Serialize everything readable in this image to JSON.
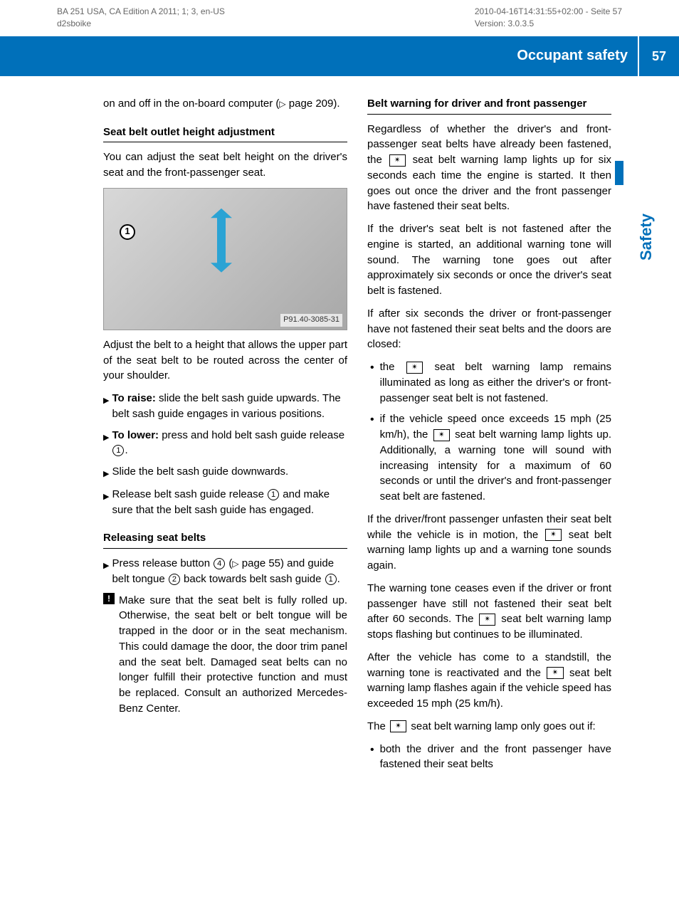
{
  "meta": {
    "doc_id_1": "BA 251 USA, CA Edition A 2011; 1; 3, en-US",
    "doc_id_2": "d2sboike",
    "timestamp": "2010-04-16T14:31:55+02:00 - Seite 57",
    "version": "Version: 3.0.3.5"
  },
  "header": {
    "title": "Occupant safety",
    "page": "57"
  },
  "side_tab": "Safety",
  "left": {
    "intro_1": "on and off in the on-board computer (",
    "intro_2": " page 209).",
    "h1": "Seat belt outlet height adjustment",
    "p1": "You can adjust the seat belt height on the driver's seat and the front-passenger seat.",
    "fig_label": "P91.40-3085-31",
    "p2": "Adjust the belt to a height that allows the upper part of the seat belt to be routed across the center of your shoulder.",
    "step1_a": "To raise:",
    "step1_b": " slide the belt sash guide upwards. The belt sash guide engages in various positions.",
    "step2_a": "To lower:",
    "step2_b": " press and hold belt sash guide release ",
    "step2_c": ".",
    "step3": "Slide the belt sash guide downwards.",
    "step4_a": "Release belt sash guide release ",
    "step4_b": " and make sure that the belt sash guide has engaged.",
    "h2": "Releasing seat belts",
    "rel_a": "Press release button ",
    "rel_b": " (",
    "rel_c": " page 55) and guide belt tongue ",
    "rel_d": " back towards belt sash guide ",
    "rel_e": ".",
    "note": "Make sure that the seat belt is fully rolled up. Otherwise, the seat belt or belt tongue will be trapped in the door or in the seat mechanism. This could damage the door, the door trim panel and the seat belt. Damaged seat belts can no longer fulfill their protective function and must be replaced. Consult an authorized Mercedes-Benz Center."
  },
  "right": {
    "h1": "Belt warning for driver and front passenger",
    "p1_a": "Regardless of whether the driver's and front-passenger seat belts have already been fastened, the ",
    "p1_b": " seat belt warning lamp lights up for six seconds each time the engine is started. It then goes out once the driver and the front passenger have fastened their seat belts.",
    "p2": "If the driver's seat belt is not fastened after the engine is started, an additional warning tone will sound. The warning tone goes out after approximately six seconds or once the driver's seat belt is fastened.",
    "p3": "If after six seconds the driver or front-passenger have not fastened their seat belts and the doors are closed:",
    "li1_a": "the ",
    "li1_b": " seat belt warning lamp remains illuminated as long as either the driver's or front-passenger seat belt is not fastened.",
    "li2_a": "if the vehicle speed once exceeds 15 mph (25 km/h), the ",
    "li2_b": " seat belt warning lamp lights up. Additionally, a warning tone will sound with increasing intensity for a maximum of 60 seconds or until the driver's and front-passenger seat belt are fastened.",
    "p4_a": "If the driver/front passenger unfasten their seat belt while the vehicle is in motion, the ",
    "p4_b": " seat belt warning lamp lights up and a warning tone sounds again.",
    "p5_a": "The warning tone ceases even if the driver or front passenger have still not fastened their seat belt after 60 seconds. The ",
    "p5_b": " seat belt warning lamp stops flashing but continues to be illuminated.",
    "p6_a": "After the vehicle has come to a standstill, the warning tone is reactivated and the ",
    "p6_b": " seat belt warning lamp flashes again if the vehicle speed has exceeded 15 mph (25 km/h).",
    "p7_a": "The ",
    "p7_b": " seat belt warning lamp only goes out if:",
    "li3": "both the driver and the front passenger have fastened their seat belts"
  },
  "icons": {
    "belt": "✴",
    "c1": "1",
    "c2": "2",
    "c4": "4"
  }
}
